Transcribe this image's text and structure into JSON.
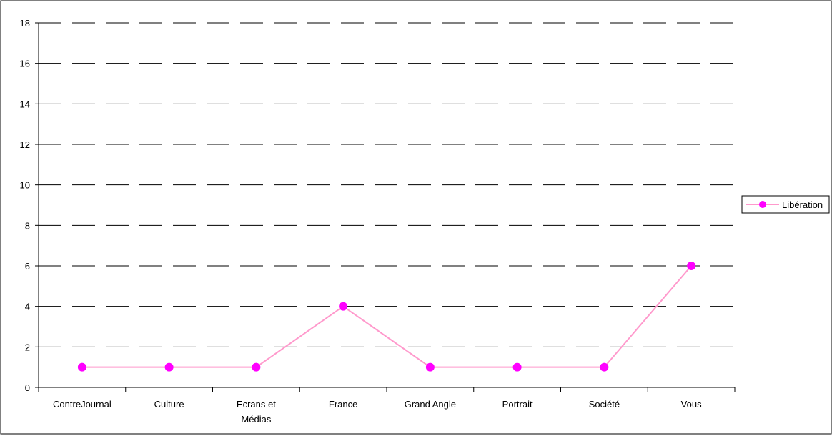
{
  "chart_data": {
    "type": "line",
    "title": "",
    "xlabel": "",
    "ylabel": "",
    "categories": [
      "ContreJournal",
      "Culture",
      "Ecrans et Médias",
      "France",
      "Grand Angle",
      "Portrait",
      "Société",
      "Vous"
    ],
    "category_label_lines": [
      [
        "ContreJournal"
      ],
      [
        "Culture"
      ],
      [
        "Ecrans et",
        "Médias"
      ],
      [
        "France"
      ],
      [
        "Grand Angle"
      ],
      [
        "Portrait"
      ],
      [
        "Société"
      ],
      [
        "Vous"
      ]
    ],
    "series": [
      {
        "name": "Libération",
        "values": [
          1,
          1,
          1,
          4,
          1,
          1,
          1,
          6
        ],
        "color": "#ff00ff",
        "line_color": "#ff99cc"
      }
    ],
    "ylim": [
      0,
      18
    ],
    "yticks": [
      0,
      2,
      4,
      6,
      8,
      10,
      12,
      14,
      16,
      18
    ],
    "grid": "dashed-horizontal",
    "legend_position": "right"
  }
}
